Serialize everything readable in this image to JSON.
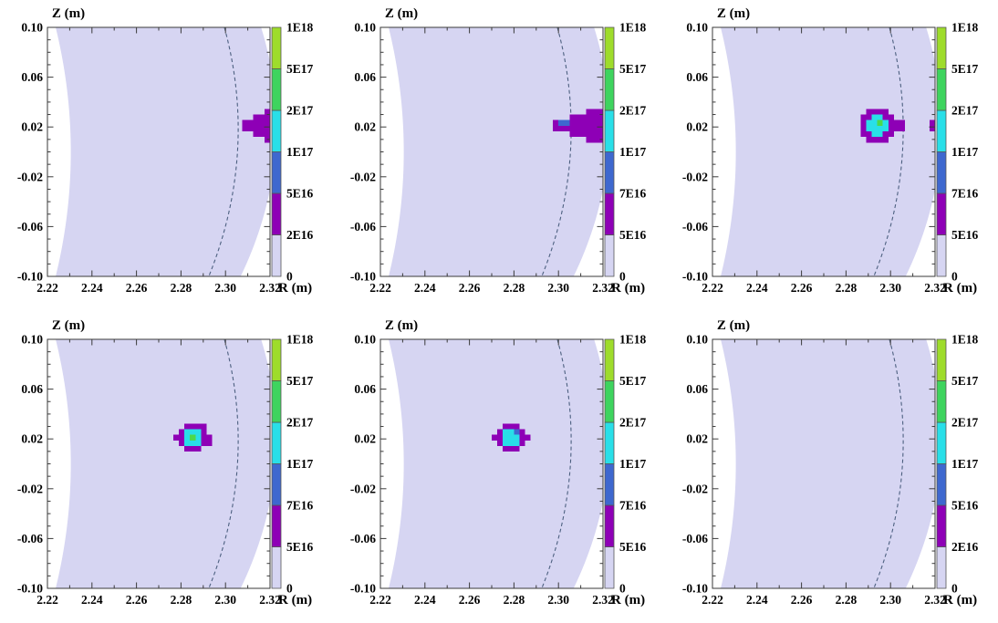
{
  "figure": {
    "description": "2x3 grid of R-Z poloidal cross-section heatmaps with colorbars",
    "rows": 2,
    "cols": 3
  },
  "chart_data": {
    "type": "heatmap",
    "x_label": "R (m)",
    "y_label": "Z (m)",
    "x_range": [
      2.22,
      2.32
    ],
    "y_range": [
      -0.1,
      0.1
    ],
    "x_ticks": [
      {
        "r": 2.22,
        "label": "2.22"
      },
      {
        "r": 2.24,
        "label": "2.24"
      },
      {
        "r": 2.26,
        "label": "2.26"
      },
      {
        "r": 2.28,
        "label": "2.28"
      },
      {
        "r": 2.3,
        "label": "2.30"
      },
      {
        "r": 2.32,
        "label": "2.32"
      }
    ],
    "y_ticks": [
      {
        "z": 0.1,
        "label": "0.10"
      },
      {
        "z": 0.06,
        "label": "0.06"
      },
      {
        "z": 0.02,
        "label": "0.02"
      },
      {
        "z": -0.02,
        "label": "-0.02"
      },
      {
        "z": -0.06,
        "label": "-0.06"
      },
      {
        "z": -0.1,
        "label": "-0.10"
      }
    ],
    "x_minor_step": 0.01,
    "y_minor_step": 0.01,
    "colors": {
      "background": "#ffffff",
      "band_lavender": "#d6d5f2",
      "purple": "#8e00b6",
      "blue": "#3e68cf",
      "cyan": "#29dfe8",
      "green_cell": "#4cd94c",
      "cb_green": "#3ed45e",
      "cb_yellowgreen": "#9edc2b",
      "axis": "#3a3a3a",
      "dashed_line": "#4d6080",
      "text": "#000000"
    },
    "colorbar_segment_colors_bottom_to_top": [
      "#d6d5f2",
      "#8e00b6",
      "#3e68cf",
      "#29dfe8",
      "#3ed45e",
      "#9edc2b"
    ],
    "plasma_band": {
      "left_edge": {
        "r_top": 2.2237,
        "r_apex": 2.2305,
        "z_apex": 0.0,
        "r_bot": 2.2237
      },
      "right_edge": {
        "r_top": 2.316,
        "r_apex": 2.3228,
        "z_apex": 0.02,
        "r_bot": 2.3068
      }
    },
    "dashed_surface": {
      "r_top": 2.2995,
      "r_apex": 2.3057,
      "z_apex": 0.02,
      "r_bot": 2.2925
    },
    "cell_size": {
      "dr": 0.0025,
      "dz": 0.0045
    },
    "value_codes": {
      "1": "5E16-ish purple",
      "2": "blue ~1E17",
      "3": "cyan ~1.5E17",
      "4": "green ~2.5E17"
    },
    "panels": [
      {
        "id": "panel-1",
        "colorbar_ticks_bottom_to_top": [
          "0",
          "2E16",
          "5E16",
          "1E17",
          "2E17",
          "5E17",
          "1E18"
        ],
        "blobs": [
          {
            "r0": 2.3075,
            "z_top": 0.0345,
            "rows": [
              [
                0,
                0,
                0,
                0,
                1
              ],
              [
                0,
                0,
                1,
                1,
                1
              ],
              [
                1,
                1,
                1,
                1,
                1
              ],
              [
                1,
                1,
                1,
                1,
                1
              ],
              [
                0,
                0,
                1,
                1,
                1
              ],
              [
                0,
                0,
                0,
                0,
                1
              ]
            ]
          }
        ]
      },
      {
        "id": "panel-2",
        "colorbar_ticks_bottom_to_top": [
          "0",
          "5E16",
          "7E16",
          "1E17",
          "2E17",
          "5E17",
          "1E18"
        ],
        "blobs": [
          {
            "r0": 2.2975,
            "z_top": 0.0345,
            "rows": [
              [
                0,
                0,
                0,
                0,
                0,
                0,
                1,
                1,
                1
              ],
              [
                0,
                0,
                0,
                1,
                1,
                1,
                1,
                1,
                1
              ],
              [
                1,
                2,
                2,
                1,
                1,
                1,
                1,
                1,
                1
              ],
              [
                1,
                1,
                1,
                1,
                1,
                1,
                1,
                1,
                1
              ],
              [
                0,
                0,
                0,
                1,
                1,
                1,
                1,
                1,
                1
              ],
              [
                0,
                0,
                0,
                0,
                0,
                0,
                1,
                1,
                1
              ]
            ]
          }
        ]
      },
      {
        "id": "panel-3",
        "colorbar_ticks_bottom_to_top": [
          "0",
          "5E16",
          "7E16",
          "1E17",
          "2E17",
          "5E17",
          "1E18"
        ],
        "blobs": [
          {
            "r0": 2.2865,
            "z_top": 0.0345,
            "rows": [
              [
                0,
                1,
                1,
                1,
                1,
                0,
                0,
                0
              ],
              [
                1,
                1,
                3,
                3,
                1,
                1,
                0,
                0
              ],
              [
                1,
                3,
                3,
                4,
                3,
                1,
                1,
                1
              ],
              [
                1,
                3,
                3,
                3,
                3,
                1,
                1,
                1
              ],
              [
                1,
                1,
                3,
                3,
                1,
                1,
                0,
                0
              ],
              [
                0,
                1,
                1,
                1,
                1,
                0,
                0,
                0
              ]
            ]
          },
          {
            "r0": 2.3175,
            "z_top": 0.0255,
            "rows": [
              [
                1
              ],
              [
                1
              ]
            ]
          }
        ]
      },
      {
        "id": "panel-4",
        "colorbar_ticks_bottom_to_top": [
          "0",
          "5E16",
          "7E16",
          "1E17",
          "2E17",
          "5E17",
          "1E18"
        ],
        "blobs": [
          {
            "r0": 2.2765,
            "z_top": 0.0323,
            "rows": [
              [
                0,
                0,
                1,
                1,
                1,
                1,
                0
              ],
              [
                0,
                1,
                3,
                3,
                3,
                1,
                0
              ],
              [
                1,
                1,
                3,
                4,
                3,
                1,
                1
              ],
              [
                0,
                1,
                3,
                3,
                3,
                1,
                1
              ],
              [
                0,
                0,
                1,
                1,
                1,
                0,
                0
              ]
            ]
          }
        ]
      },
      {
        "id": "panel-5",
        "colorbar_ticks_bottom_to_top": [
          "0",
          "5E16",
          "7E16",
          "1E17",
          "2E17",
          "5E17",
          "1E18"
        ],
        "blobs": [
          {
            "r0": 2.27,
            "z_top": 0.0323,
            "rows": [
              [
                0,
                0,
                1,
                1,
                1,
                0,
                0
              ],
              [
                0,
                1,
                3,
                3,
                2,
                1,
                0
              ],
              [
                1,
                1,
                3,
                3,
                3,
                1,
                1
              ],
              [
                0,
                1,
                3,
                3,
                3,
                1,
                0
              ],
              [
                0,
                0,
                1,
                1,
                1,
                0,
                0
              ]
            ]
          }
        ]
      },
      {
        "id": "panel-6",
        "colorbar_ticks_bottom_to_top": [
          "0",
          "2E16",
          "5E16",
          "1E17",
          "2E17",
          "5E17",
          "1E18"
        ],
        "blobs": []
      }
    ]
  }
}
